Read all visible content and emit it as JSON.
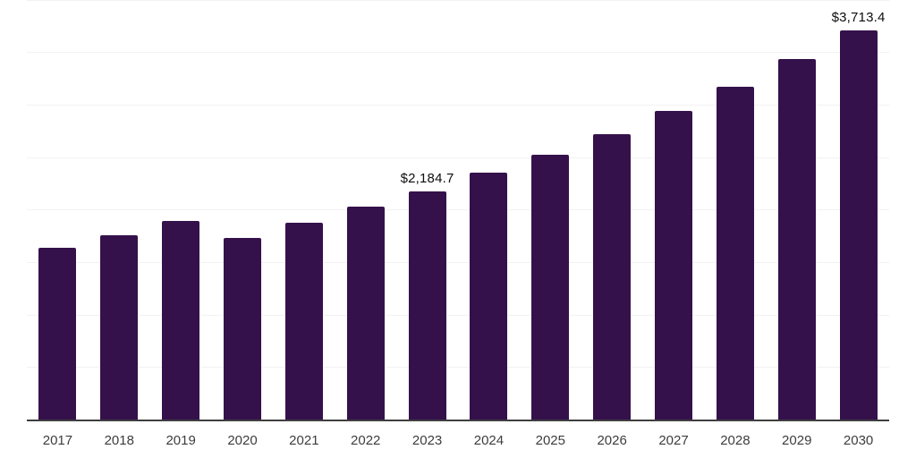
{
  "chart_data": {
    "type": "bar",
    "title": "",
    "xlabel": "",
    "ylabel": "",
    "categories": [
      "2017",
      "2018",
      "2019",
      "2020",
      "2021",
      "2022",
      "2023",
      "2024",
      "2025",
      "2026",
      "2027",
      "2028",
      "2029",
      "2030"
    ],
    "values": [
      1645,
      1765,
      1900,
      1740,
      1885,
      2035,
      2184.7,
      2360,
      2535,
      2730,
      2945,
      3180,
      3440,
      3713.4
    ],
    "bar_labels": [
      "",
      "",
      "",
      "",
      "",
      "",
      "$2,184.7",
      "",
      "",
      "",
      "",
      "",
      "",
      "$3,713.4"
    ],
    "ylim": [
      0,
      4000
    ],
    "gridline_interval": 500,
    "grid": true,
    "legend": false,
    "y_axis_labels_visible": false,
    "colors": {
      "bar": "#35114b",
      "gridline": "#f2f2f2",
      "axis_line": "#3f3f3f",
      "tick_label": "#3d3d3d",
      "value_label": "#0d0d0d",
      "background": "#ffffff"
    }
  }
}
